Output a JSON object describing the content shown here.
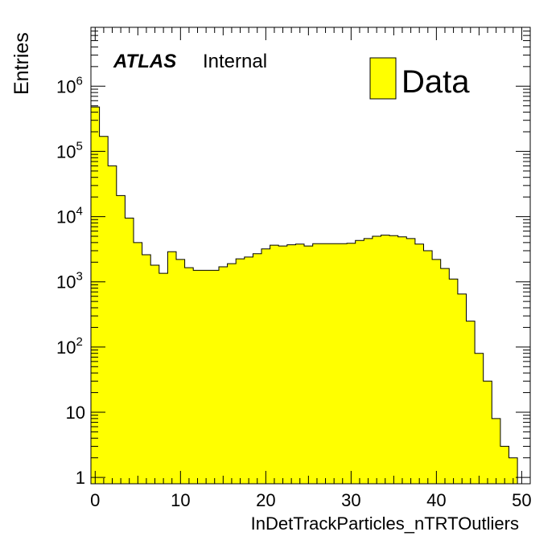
{
  "chart_data": {
    "type": "histogram",
    "xlabel": "InDetTrackParticles_nTRTOutliers",
    "ylabel": "Entries",
    "annotation": {
      "experiment": "ATLAS",
      "status": "Internal"
    },
    "legend": {
      "position": "top-right",
      "entries": [
        {
          "label": "Data",
          "color": "#ffff00"
        }
      ]
    },
    "xlim": [
      -0.5,
      51
    ],
    "ylim": [
      0.8,
      8000000
    ],
    "yscale": "log",
    "bin_width": 1,
    "x_ticks": [
      "0",
      "10",
      "20",
      "30",
      "40",
      "50"
    ],
    "y_ticks": [
      {
        "base": "1",
        "exp": ""
      },
      {
        "base": "10",
        "exp": ""
      },
      {
        "base": "10",
        "exp": "2"
      },
      {
        "base": "10",
        "exp": "3"
      },
      {
        "base": "10",
        "exp": "4"
      },
      {
        "base": "10",
        "exp": "5"
      },
      {
        "base": "10",
        "exp": "6"
      }
    ],
    "series": [
      {
        "fill": "#ffff00",
        "x": [
          0,
          1,
          2,
          3,
          4,
          5,
          6,
          7,
          8,
          9,
          10,
          11,
          12,
          13,
          14,
          15,
          16,
          17,
          18,
          19,
          20,
          21,
          22,
          23,
          24,
          25,
          26,
          27,
          28,
          29,
          30,
          31,
          32,
          33,
          34,
          35,
          36,
          37,
          38,
          39,
          40,
          41,
          42,
          43,
          44,
          45,
          46,
          47,
          48,
          49
        ],
        "values": [
          480000,
          170000,
          60000,
          21000,
          9500,
          4000,
          2600,
          1800,
          1350,
          2900,
          2200,
          1650,
          1500,
          1500,
          1500,
          1700,
          1900,
          2250,
          2400,
          2700,
          3200,
          3650,
          3550,
          3700,
          3800,
          3550,
          3850,
          3850,
          3850,
          3850,
          3900,
          4300,
          4600,
          5000,
          5200,
          5100,
          4900,
          4600,
          3800,
          3000,
          2200,
          1600,
          1100,
          650,
          250,
          80,
          30,
          8,
          3,
          2
        ]
      }
    ]
  }
}
